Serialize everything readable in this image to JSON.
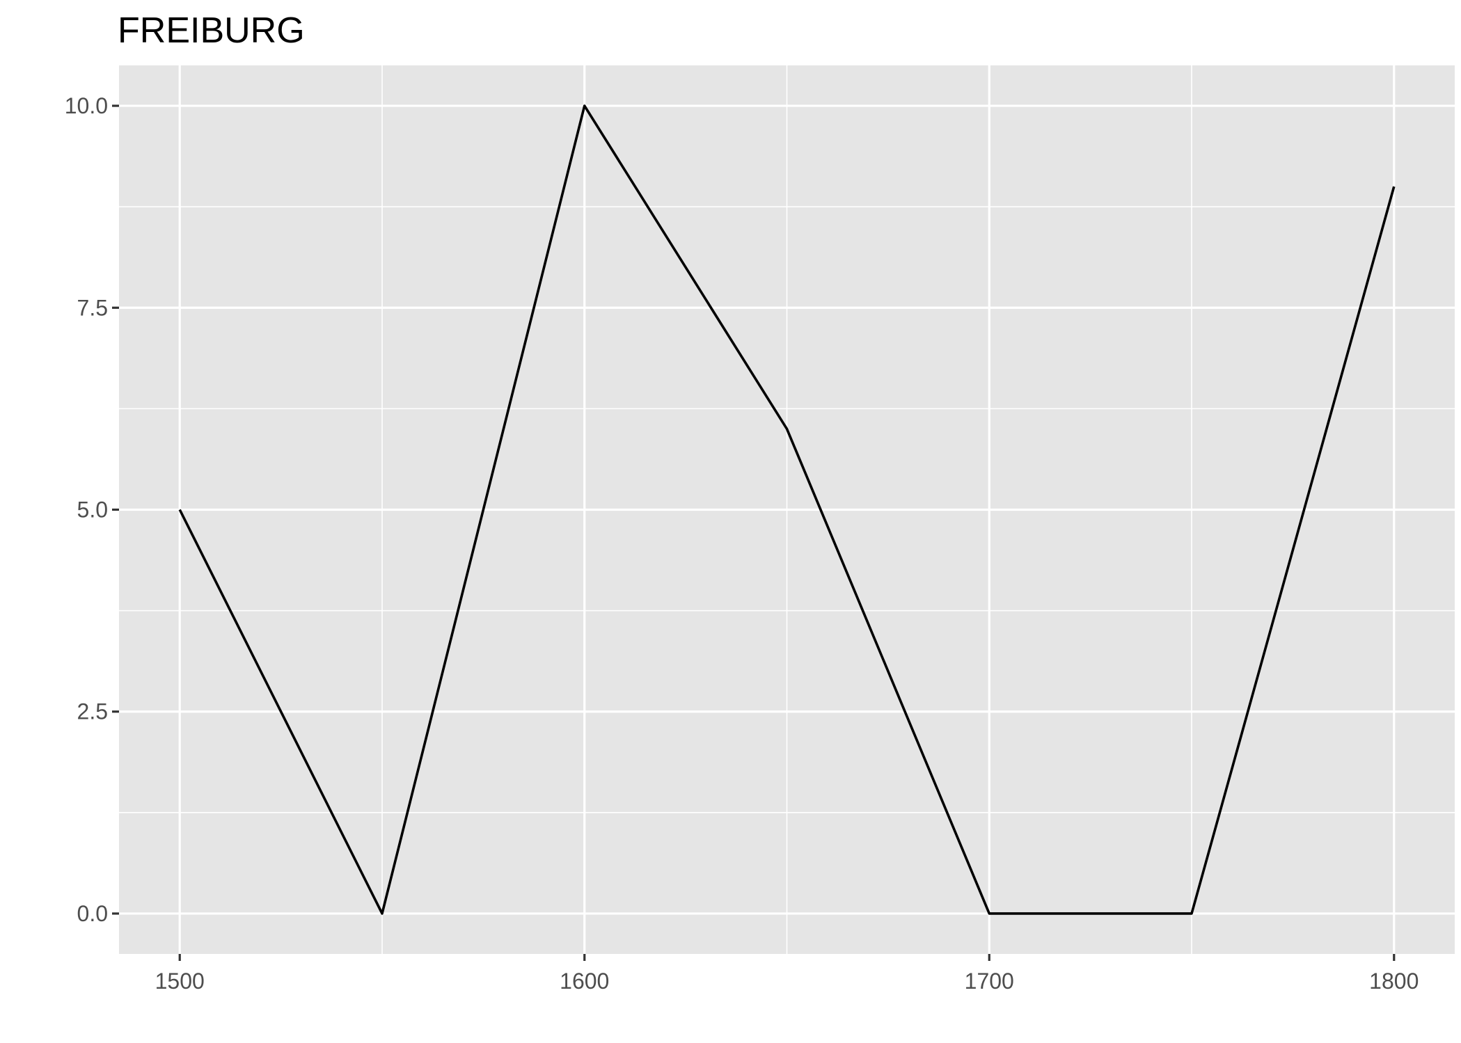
{
  "chart_data": {
    "type": "line",
    "title": "FREIBURG",
    "xlabel": "",
    "ylabel": "",
    "x": [
      1500,
      1550,
      1600,
      1650,
      1700,
      1750,
      1800
    ],
    "series": [
      {
        "values": [
          5,
          0,
          10,
          6,
          0,
          0,
          9
        ]
      }
    ],
    "xlim": [
      1485,
      1815
    ],
    "ylim": [
      -0.5,
      10.5
    ],
    "x_ticks": [
      1500,
      1600,
      1700,
      1800
    ],
    "x_tick_labels": [
      "1500",
      "1600",
      "1700",
      "1800"
    ],
    "x_minor_ticks": [
      1550,
      1650,
      1750
    ],
    "y_ticks": [
      0,
      2.5,
      5,
      7.5,
      10
    ],
    "y_tick_labels": [
      "0.0",
      "2.5",
      "5.0",
      "7.5",
      "10.0"
    ],
    "y_minor_ticks": [
      1.25,
      3.75,
      6.25,
      8.75
    ],
    "grid": true,
    "legend": "none",
    "colors": {
      "panel": "#e5e5e5",
      "grid": "#ffffff",
      "line": "#000000",
      "tick_text": "#4d4d4d",
      "tick_mark": "#333333"
    }
  }
}
